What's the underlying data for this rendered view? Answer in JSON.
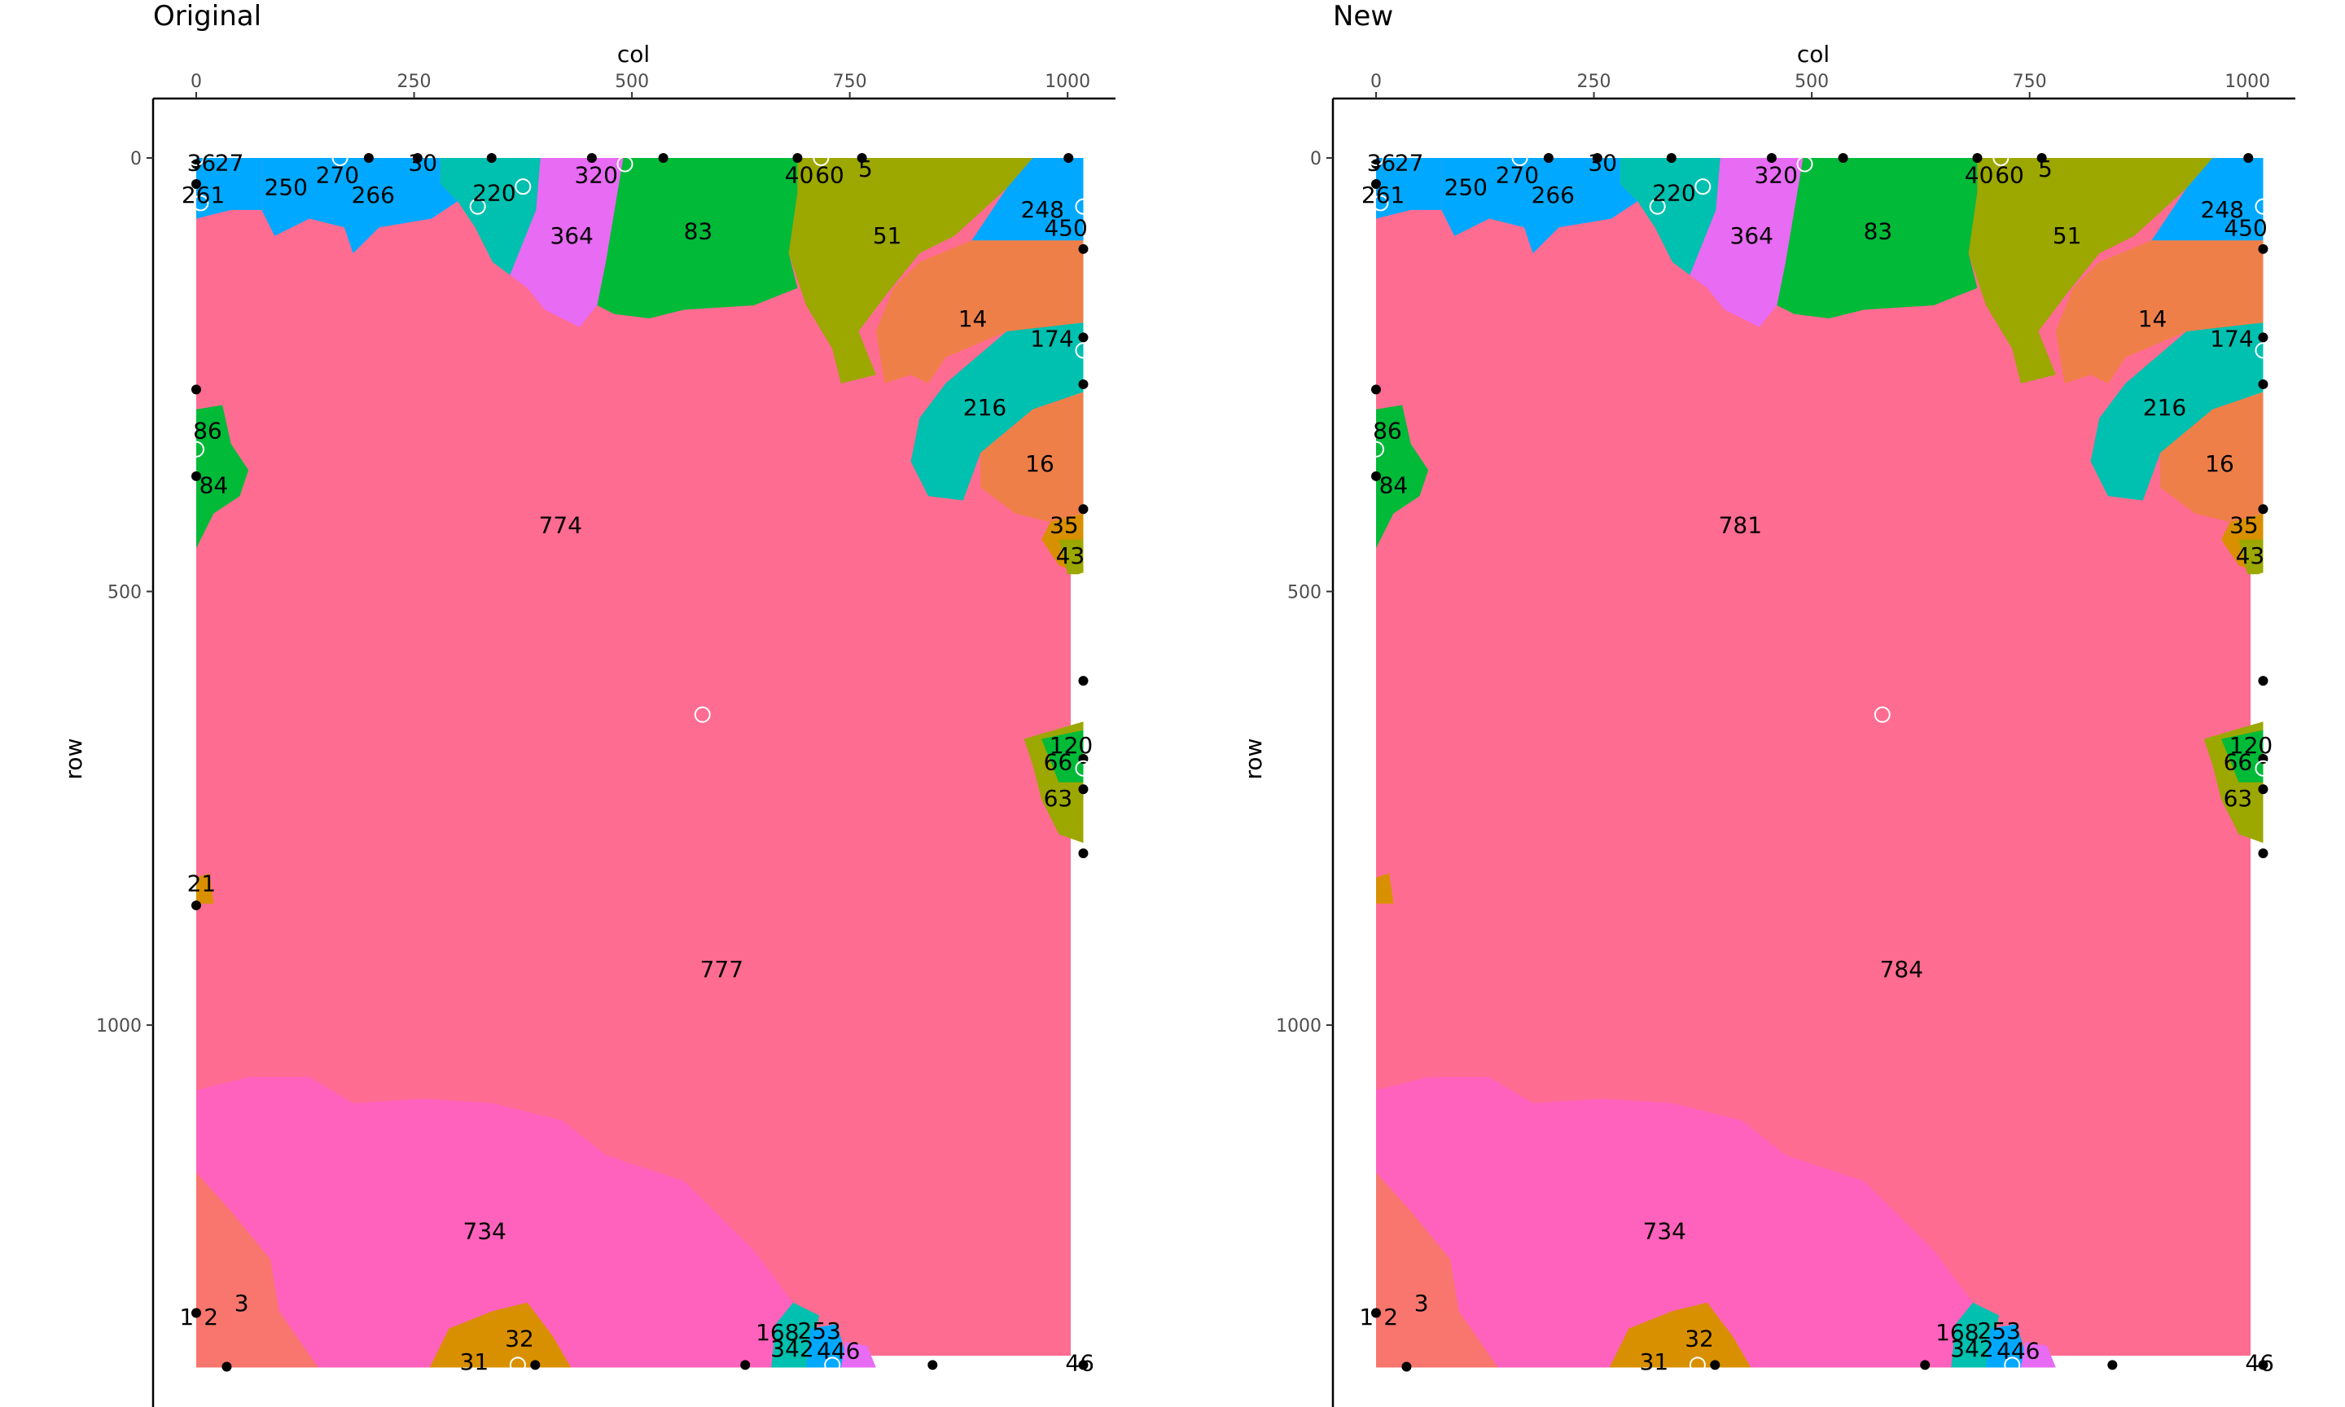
{
  "chart_data": [
    {
      "type": "map",
      "title": "Original",
      "xlabel": "col",
      "ylabel": "row",
      "x_axis_position": "top",
      "y_axis_reversed": true,
      "xlim": [
        -50,
        1070
      ],
      "ylim": [
        0,
        1460
      ],
      "xticks": [
        0,
        250,
        500,
        750,
        1000
      ],
      "yticks": [
        0,
        500,
        1000
      ],
      "grid": false,
      "legend": "none",
      "colors": {
        "background_region": "#FF6C91",
        "bottom_region": "#FF62BC",
        "green": "#00BA38",
        "olive": "#9CA700",
        "orange": "#EF7F49",
        "teal": "#00C0AF",
        "blue": "#00A9FF",
        "magenta": "#E76BF3",
        "gold": "#D89000",
        "salmon": "#F8766D"
      },
      "region_labels": [
        {
          "label": "774",
          "col": 418,
          "row": 425
        },
        {
          "label": "777",
          "col": 603,
          "row": 937
        },
        {
          "label": "734",
          "col": 331,
          "row": 1239
        },
        {
          "label": "83",
          "col": 576,
          "row": 86
        },
        {
          "label": "51",
          "col": 793,
          "row": 91
        },
        {
          "label": "14",
          "col": 891,
          "row": 187
        },
        {
          "label": "174",
          "col": 982,
          "row": 210
        },
        {
          "label": "216",
          "col": 905,
          "row": 289
        },
        {
          "label": "16",
          "col": 968,
          "row": 354
        },
        {
          "label": "35",
          "col": 996,
          "row": 425
        },
        {
          "label": "43",
          "col": 1003,
          "row": 460
        },
        {
          "label": "248",
          "col": 971,
          "row": 61
        },
        {
          "label": "450",
          "col": 998,
          "row": 82
        },
        {
          "label": "364",
          "col": 431,
          "row": 91
        },
        {
          "label": "320",
          "col": 459,
          "row": 21
        },
        {
          "label": "220",
          "col": 342,
          "row": 42
        },
        {
          "label": "266",
          "col": 203,
          "row": 44
        },
        {
          "label": "250",
          "col": 103,
          "row": 35
        },
        {
          "label": "270",
          "col": 162,
          "row": 21
        },
        {
          "label": "30",
          "col": 260,
          "row": 7
        },
        {
          "label": "40",
          "col": 692,
          "row": 21
        },
        {
          "label": "60",
          "col": 727,
          "row": 21
        },
        {
          "label": "5",
          "col": 768,
          "row": 14
        },
        {
          "label": "86",
          "col": 13,
          "row": 316
        },
        {
          "label": "84",
          "col": 20,
          "row": 379
        },
        {
          "label": "21",
          "col": 6,
          "row": 838
        },
        {
          "label": "120",
          "col": 1004,
          "row": 679
        },
        {
          "label": "66",
          "col": 989,
          "row": 698
        },
        {
          "label": "63",
          "col": 989,
          "row": 740
        },
        {
          "label": "3",
          "col": 52,
          "row": 1322
        },
        {
          "label": "1",
          "col": -11,
          "row": 1338
        },
        {
          "label": "2",
          "col": 17,
          "row": 1338
        },
        {
          "label": "31",
          "col": 319,
          "row": 1390
        },
        {
          "label": "32",
          "col": 371,
          "row": 1363
        },
        {
          "label": "168",
          "col": 667,
          "row": 1356
        },
        {
          "label": "253",
          "col": 715,
          "row": 1354
        },
        {
          "label": "342",
          "col": 684,
          "row": 1375
        },
        {
          "label": "446",
          "col": 737,
          "row": 1377
        },
        {
          "label": "46",
          "col": 1014,
          "row": 1391
        },
        {
          "label": "36",
          "col": 6,
          "row": 7
        },
        {
          "label": "27",
          "col": 38,
          "row": 7
        },
        {
          "label": "261",
          "col": 8,
          "row": 44
        }
      ],
      "point_markers": {
        "filled": [
          [
            0,
            267
          ],
          [
            0,
            367
          ],
          [
            0,
            862
          ],
          [
            0,
            1332
          ],
          [
            35,
            1394
          ],
          [
            0,
            30
          ],
          [
            0,
            7
          ],
          [
            198,
            0
          ],
          [
            254,
            0
          ],
          [
            339,
            0
          ],
          [
            454,
            0
          ],
          [
            536,
            0
          ],
          [
            764,
            0
          ],
          [
            1001,
            0
          ],
          [
            1018,
            105
          ],
          [
            1018,
            207
          ],
          [
            1018,
            261
          ],
          [
            1018,
            405
          ],
          [
            1018,
            802
          ],
          [
            1018,
            693
          ],
          [
            1018,
            728
          ],
          [
            1018,
            603
          ],
          [
            1018,
            1392
          ],
          [
            389,
            1392
          ],
          [
            630,
            1392
          ],
          [
            845,
            1392
          ],
          [
            690,
            0
          ]
        ],
        "open": [
          [
            0,
            336
          ],
          [
            0,
            0
          ],
          [
            323,
            56
          ],
          [
            375,
            33
          ],
          [
            492,
            7
          ],
          [
            717,
            0
          ],
          [
            1018,
            56
          ],
          [
            1018,
            222
          ],
          [
            1018,
            488
          ],
          [
            1018,
            802
          ],
          [
            581,
            642
          ],
          [
            369,
            1392
          ],
          [
            730,
            1392
          ],
          [
            1018,
            704
          ],
          [
            165,
            0
          ],
          [
            5,
            52
          ]
        ]
      }
    },
    {
      "type": "map",
      "title": "New",
      "xlabel": "col",
      "ylabel": "row",
      "x_axis_position": "top",
      "y_axis_reversed": true,
      "xlim": [
        -50,
        1070
      ],
      "ylim": [
        0,
        1460
      ],
      "xticks": [
        0,
        250,
        500,
        750,
        1000
      ],
      "yticks": [
        0,
        500,
        1000
      ],
      "grid": false,
      "legend": "none",
      "colors": {
        "background_region": "#FF6C91",
        "bottom_region": "#FF62BC",
        "green": "#00BA38",
        "olive": "#9CA700",
        "orange": "#EF7F49",
        "teal": "#00C0AF",
        "blue": "#00A9FF",
        "magenta": "#E76BF3",
        "gold": "#D89000",
        "salmon": "#F8766D"
      },
      "region_labels": [
        {
          "label": "781",
          "col": 418,
          "row": 425
        },
        {
          "label": "784",
          "col": 603,
          "row": 937
        },
        {
          "label": "734",
          "col": 331,
          "row": 1239
        },
        {
          "label": "83",
          "col": 576,
          "row": 86
        },
        {
          "label": "51",
          "col": 793,
          "row": 91
        },
        {
          "label": "14",
          "col": 891,
          "row": 187
        },
        {
          "label": "174",
          "col": 982,
          "row": 210
        },
        {
          "label": "216",
          "col": 905,
          "row": 289
        },
        {
          "label": "16",
          "col": 968,
          "row": 354
        },
        {
          "label": "35",
          "col": 996,
          "row": 425
        },
        {
          "label": "43",
          "col": 1003,
          "row": 460
        },
        {
          "label": "248",
          "col": 971,
          "row": 61
        },
        {
          "label": "450",
          "col": 998,
          "row": 82
        },
        {
          "label": "364",
          "col": 431,
          "row": 91
        },
        {
          "label": "320",
          "col": 459,
          "row": 21
        },
        {
          "label": "220",
          "col": 342,
          "row": 42
        },
        {
          "label": "266",
          "col": 203,
          "row": 44
        },
        {
          "label": "250",
          "col": 103,
          "row": 35
        },
        {
          "label": "270",
          "col": 162,
          "row": 21
        },
        {
          "label": "30",
          "col": 260,
          "row": 7
        },
        {
          "label": "40",
          "col": 692,
          "row": 21
        },
        {
          "label": "60",
          "col": 727,
          "row": 21
        },
        {
          "label": "5",
          "col": 768,
          "row": 14
        },
        {
          "label": "86",
          "col": 13,
          "row": 316
        },
        {
          "label": "84",
          "col": 20,
          "row": 379
        },
        {
          "label": "120",
          "col": 1004,
          "row": 679
        },
        {
          "label": "66",
          "col": 989,
          "row": 698
        },
        {
          "label": "63",
          "col": 989,
          "row": 740
        },
        {
          "label": "3",
          "col": 52,
          "row": 1322
        },
        {
          "label": "1",
          "col": -11,
          "row": 1338
        },
        {
          "label": "2",
          "col": 17,
          "row": 1338
        },
        {
          "label": "31",
          "col": 319,
          "row": 1390
        },
        {
          "label": "32",
          "col": 371,
          "row": 1363
        },
        {
          "label": "168",
          "col": 667,
          "row": 1356
        },
        {
          "label": "253",
          "col": 715,
          "row": 1354
        },
        {
          "label": "342",
          "col": 684,
          "row": 1375
        },
        {
          "label": "446",
          "col": 737,
          "row": 1377
        },
        {
          "label": "46",
          "col": 1014,
          "row": 1391
        },
        {
          "label": "36",
          "col": 6,
          "row": 7
        },
        {
          "label": "27",
          "col": 38,
          "row": 7
        },
        {
          "label": "261",
          "col": 8,
          "row": 44
        }
      ],
      "point_markers": {
        "filled": [
          [
            0,
            267
          ],
          [
            0,
            367
          ],
          [
            0,
            1332
          ],
          [
            35,
            1394
          ],
          [
            0,
            30
          ],
          [
            0,
            7
          ],
          [
            198,
            0
          ],
          [
            254,
            0
          ],
          [
            339,
            0
          ],
          [
            454,
            0
          ],
          [
            536,
            0
          ],
          [
            764,
            0
          ],
          [
            1001,
            0
          ],
          [
            1018,
            105
          ],
          [
            1018,
            207
          ],
          [
            1018,
            261
          ],
          [
            1018,
            405
          ],
          [
            1018,
            802
          ],
          [
            1018,
            693
          ],
          [
            1018,
            728
          ],
          [
            1018,
            603
          ],
          [
            1018,
            1392
          ],
          [
            389,
            1392
          ],
          [
            630,
            1392
          ],
          [
            845,
            1392
          ],
          [
            690,
            0
          ]
        ],
        "open": [
          [
            0,
            336
          ],
          [
            0,
            0
          ],
          [
            323,
            56
          ],
          [
            375,
            33
          ],
          [
            492,
            7
          ],
          [
            717,
            0
          ],
          [
            1018,
            56
          ],
          [
            1018,
            222
          ],
          [
            1018,
            488
          ],
          [
            1018,
            802
          ],
          [
            581,
            642
          ],
          [
            369,
            1392
          ],
          [
            730,
            1392
          ],
          [
            1018,
            704
          ],
          [
            165,
            0
          ],
          [
            5,
            52
          ]
        ]
      }
    }
  ]
}
